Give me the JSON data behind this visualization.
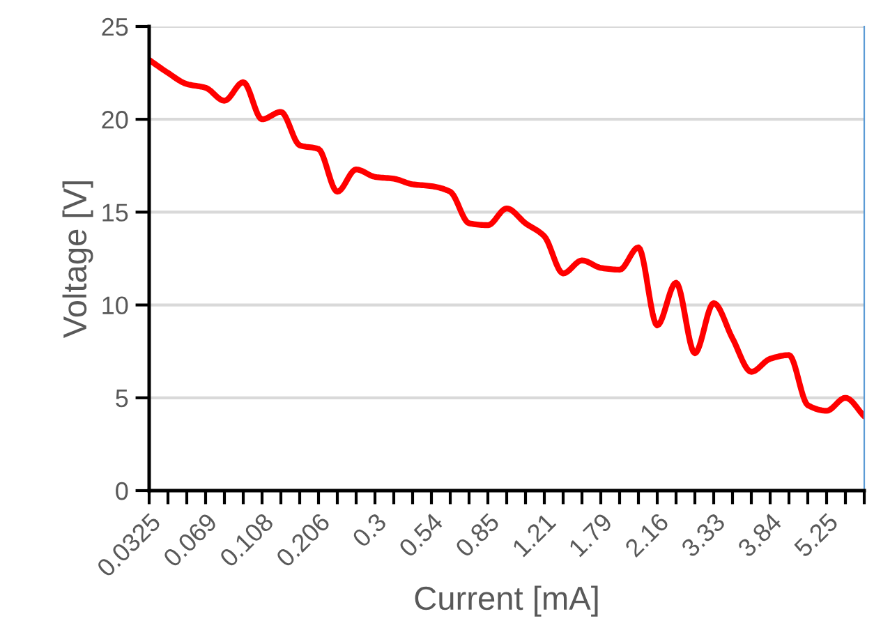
{
  "chart_data": {
    "type": "line",
    "xlabel": "Current [mA]",
    "ylabel": "Voltage [V]",
    "categories": [
      "0.0325",
      null,
      null,
      "0.069",
      null,
      null,
      "0.108",
      null,
      null,
      "0.206",
      null,
      null,
      "0.3",
      null,
      null,
      "0.54",
      null,
      null,
      "0.85",
      null,
      null,
      "1.21",
      null,
      null,
      "1.79",
      null,
      null,
      "2.16",
      null,
      null,
      "3.33",
      null,
      null,
      "3.84",
      null,
      null,
      "5.25",
      null,
      null
    ],
    "series": [
      {
        "color": "#ff0000",
        "values": [
          23.2,
          22.5,
          21.9,
          21.7,
          21.0,
          22.0,
          20.0,
          20.4,
          18.6,
          18.4,
          16.1,
          17.3,
          16.9,
          16.8,
          16.5,
          16.4,
          16.1,
          14.4,
          14.3,
          15.2,
          14.4,
          13.7,
          11.7,
          12.4,
          12.0,
          11.9,
          13.1,
          8.9,
          11.2,
          7.4,
          10.1,
          8.2,
          6.4,
          7.1,
          7.3,
          4.6,
          4.3,
          5.0,
          4.0
        ]
      }
    ],
    "ylim": [
      0,
      25
    ],
    "yticks": [
      0,
      5,
      10,
      15,
      20,
      25
    ],
    "grid": "y",
    "legend": false,
    "marker": "none",
    "line_style": "solid"
  }
}
